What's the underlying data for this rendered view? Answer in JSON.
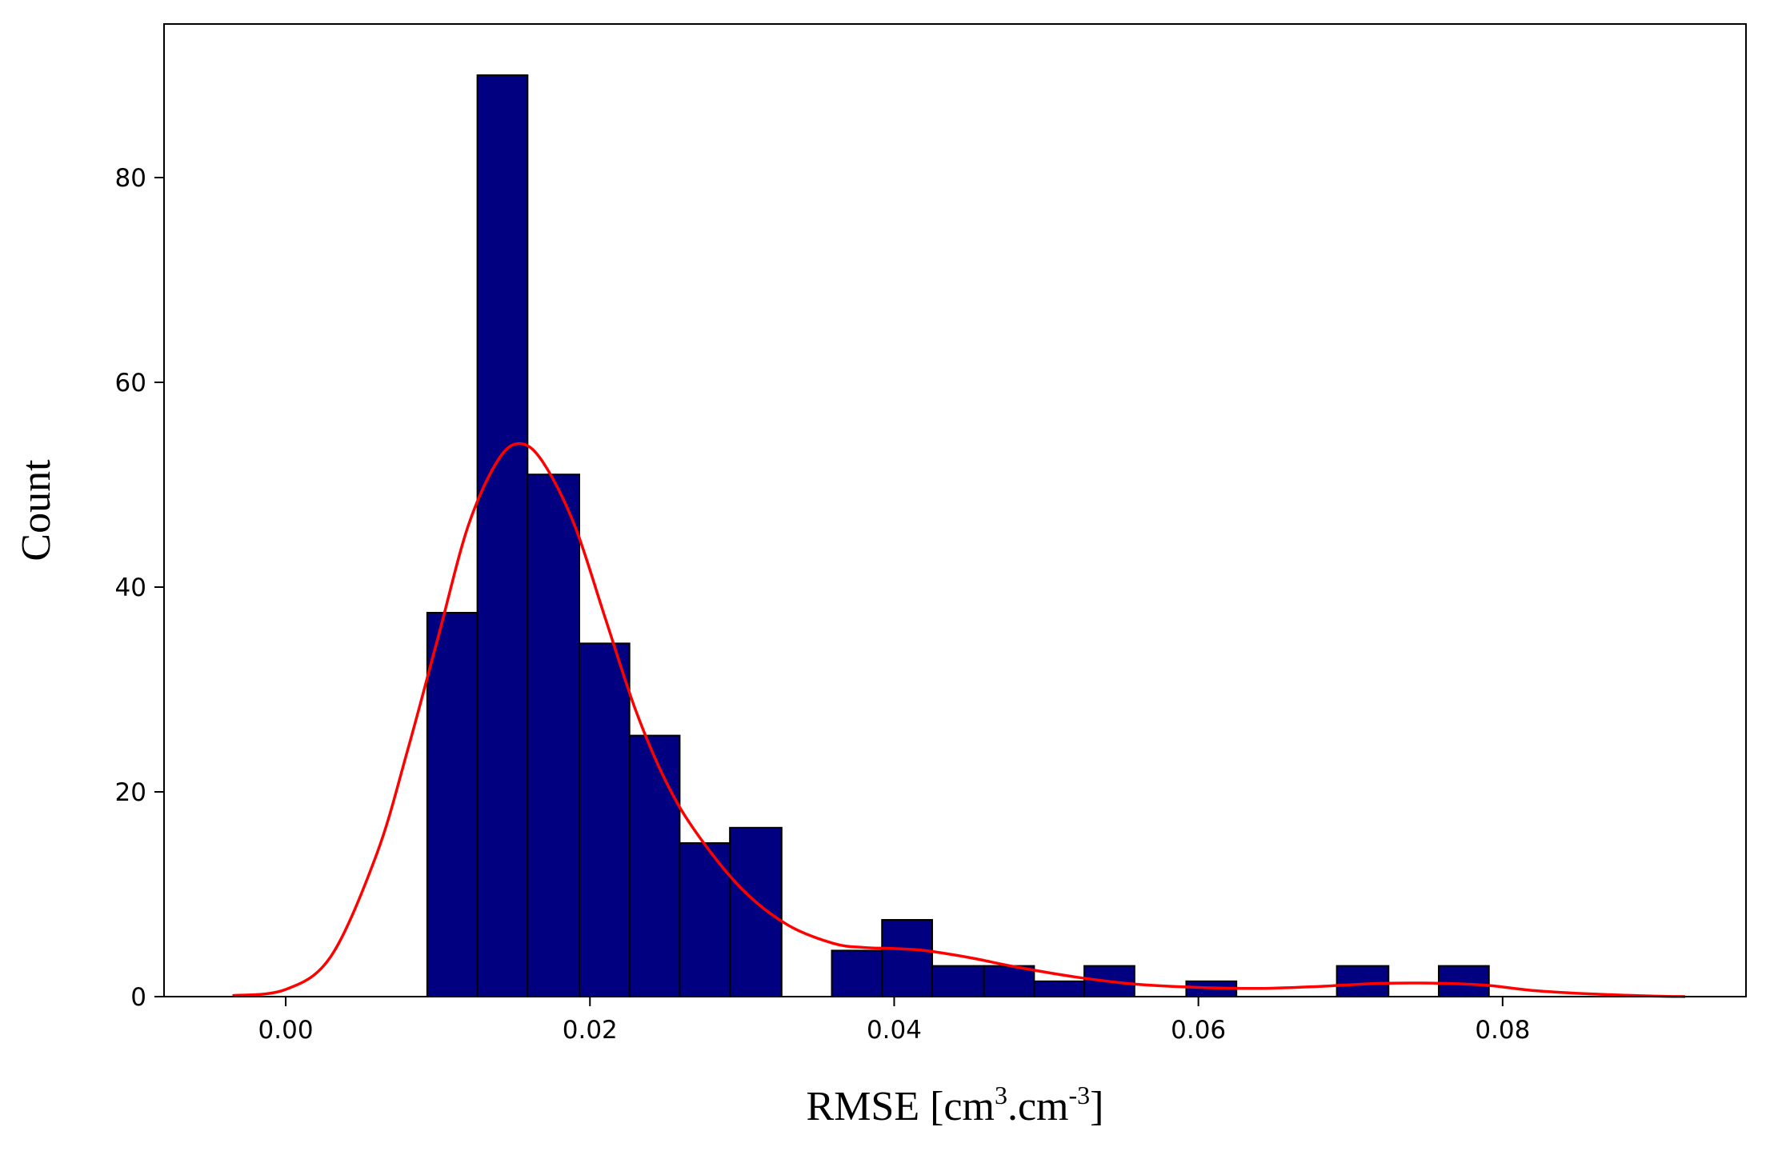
{
  "chart_data": {
    "type": "bar",
    "subtype": "histogram-with-kde",
    "title": "",
    "xlabel": {
      "main": "RMSE [cm",
      "sup1": "3",
      "mid": ".cm",
      "sup2": "-3",
      "end": "]"
    },
    "ylabel": "Count",
    "xlim": [
      -0.008,
      0.096
    ],
    "ylim": [
      0,
      95
    ],
    "x_ticks": [
      0.0,
      0.02,
      0.04,
      0.06,
      0.08
    ],
    "x_tick_labels": [
      "0.00",
      "0.02",
      "0.04",
      "0.06",
      "0.08"
    ],
    "y_ticks": [
      0,
      20,
      40,
      60,
      80
    ],
    "y_tick_labels": [
      "0",
      "20",
      "40",
      "60",
      "80"
    ],
    "grid": false,
    "legend": "none",
    "bar_color": "#000080",
    "bar_edge_color": "#000000",
    "kde_color": "#ff0000",
    "bins": [
      {
        "x0": 0.0093,
        "x1": 0.0126,
        "count": 37.5
      },
      {
        "x0": 0.0126,
        "x1": 0.0159,
        "count": 90
      },
      {
        "x0": 0.0159,
        "x1": 0.0193,
        "count": 51
      },
      {
        "x0": 0.0193,
        "x1": 0.0226,
        "count": 34.5
      },
      {
        "x0": 0.0226,
        "x1": 0.0259,
        "count": 25.5
      },
      {
        "x0": 0.0259,
        "x1": 0.0292,
        "count": 15
      },
      {
        "x0": 0.0292,
        "x1": 0.0326,
        "count": 16.5
      },
      {
        "x0": 0.0359,
        "x1": 0.0392,
        "count": 4.5
      },
      {
        "x0": 0.0392,
        "x1": 0.0425,
        "count": 7.5
      },
      {
        "x0": 0.0425,
        "x1": 0.0459,
        "count": 3
      },
      {
        "x0": 0.0459,
        "x1": 0.0492,
        "count": 3
      },
      {
        "x0": 0.0492,
        "x1": 0.0525,
        "count": 1.5
      },
      {
        "x0": 0.0525,
        "x1": 0.0558,
        "count": 3
      },
      {
        "x0": 0.0592,
        "x1": 0.0625,
        "count": 1.5
      },
      {
        "x0": 0.0691,
        "x1": 0.0725,
        "count": 3
      },
      {
        "x0": 0.0758,
        "x1": 0.0791,
        "count": 3
      }
    ],
    "kde": {
      "x": [
        -0.0035,
        0.0,
        0.003,
        0.006,
        0.008,
        0.01,
        0.012,
        0.014,
        0.0155,
        0.017,
        0.019,
        0.021,
        0.023,
        0.025,
        0.027,
        0.03,
        0.033,
        0.036,
        0.038,
        0.04,
        0.042,
        0.045,
        0.048,
        0.052,
        0.056,
        0.06,
        0.064,
        0.068,
        0.072,
        0.076,
        0.079,
        0.082,
        0.086,
        0.09,
        0.092
      ],
      "y": [
        0.1,
        0.7,
        4,
        14,
        24,
        35,
        46,
        52.5,
        54,
        52,
        46,
        37,
        28,
        21,
        16,
        10.5,
        7,
        5.2,
        4.8,
        4.7,
        4.5,
        3.8,
        2.9,
        1.9,
        1.2,
        0.9,
        0.8,
        1.0,
        1.3,
        1.3,
        1.1,
        0.6,
        0.25,
        0.05,
        0.0
      ]
    }
  }
}
